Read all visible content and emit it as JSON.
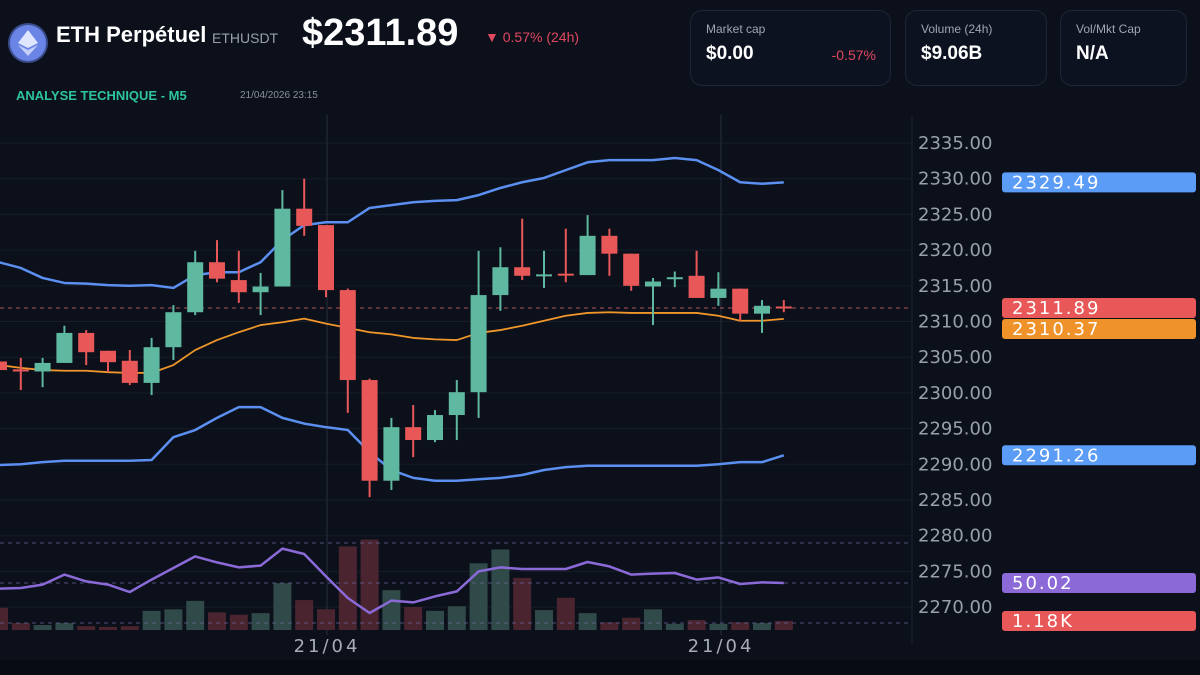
{
  "header": {
    "title": "ETH Perpétuel",
    "ticker": "ETHUSDT",
    "price": "$2311.89",
    "change": "▼ 0.57% (24h)",
    "icon": "ethereum-logo-icon"
  },
  "analysis": {
    "label": "ANALYSE TECHNIQUE - M5",
    "timestamp": "21/04/2026 23:15"
  },
  "stats": [
    {
      "label": "Market cap",
      "value": "$0.00",
      "change": "-0.57%"
    },
    {
      "label": "Volume (24h)",
      "value": "$9.06B"
    },
    {
      "label": "Vol/Mkt Cap",
      "value": "N/A"
    }
  ],
  "colors": {
    "up": "#5fb8a0",
    "down": "#e85858",
    "band": "#5b8ff0",
    "ma": "#f0962a",
    "rsi": "#8b6ad8",
    "bg": "#0b101b"
  },
  "chart_data": {
    "type": "candlestick",
    "x_labels": [
      "21/04",
      "21/04"
    ],
    "y_ticks": [
      2335,
      2330,
      2325,
      2320,
      2315,
      2310,
      2305,
      2300,
      2295,
      2290,
      2285,
      2280,
      2275,
      2270
    ],
    "y_tick_labels": [
      "2335.00",
      "2330.00",
      "2325.00",
      "2320.00",
      "2315.00",
      "2310.00",
      "2305.00",
      "2300.00",
      "2295.00",
      "2290.00",
      "2285.00",
      "2280.00",
      "2275.00",
      "2270.00"
    ],
    "ylim": [
      2268,
      2338
    ],
    "grid": true,
    "candles": [
      [
        2304.4,
        2304.9,
        2303.0,
        2303.2
      ],
      [
        2303.3,
        2304.9,
        2300.4,
        2303.0
      ],
      [
        2303.0,
        2304.9,
        2300.8,
        2304.2
      ],
      [
        2304.2,
        2309.4,
        2304.2,
        2308.4
      ],
      [
        2308.4,
        2308.8,
        2303.9,
        2305.7
      ],
      [
        2305.9,
        2305.9,
        2302.9,
        2304.3
      ],
      [
        2304.5,
        2306.0,
        2301.1,
        2301.4
      ],
      [
        2301.4,
        2307.7,
        2299.7,
        2306.4
      ],
      [
        2306.4,
        2312.3,
        2304.6,
        2311.3
      ],
      [
        2311.3,
        2319.9,
        2310.9,
        2318.3
      ],
      [
        2318.3,
        2321.4,
        2315.5,
        2316.0
      ],
      [
        2315.8,
        2319.9,
        2312.6,
        2314.1
      ],
      [
        2314.1,
        2316.8,
        2310.9,
        2314.9
      ],
      [
        2314.9,
        2328.4,
        2314.9,
        2325.8
      ],
      [
        2325.8,
        2330.0,
        2322.0,
        2323.4
      ],
      [
        2323.5,
        2323.5,
        2313.4,
        2314.4
      ],
      [
        2314.4,
        2314.6,
        2297.2,
        2301.8
      ],
      [
        2301.8,
        2302.0,
        2285.4,
        2287.7
      ],
      [
        2287.7,
        2296.5,
        2286.4,
        2295.2
      ],
      [
        2295.2,
        2298.3,
        2291.0,
        2293.4
      ],
      [
        2293.4,
        2297.6,
        2293.1,
        2296.9
      ],
      [
        2296.9,
        2301.8,
        2293.4,
        2300.1
      ],
      [
        2300.1,
        2319.9,
        2296.5,
        2313.7
      ],
      [
        2313.7,
        2320.4,
        2311.5,
        2317.6
      ],
      [
        2317.6,
        2324.4,
        2315.8,
        2316.4
      ],
      [
        2316.4,
        2319.9,
        2314.7,
        2316.6
      ],
      [
        2316.7,
        2323.0,
        2315.5,
        2316.5
      ],
      [
        2316.5,
        2324.9,
        2316.5,
        2322.0
      ],
      [
        2322.0,
        2323.0,
        2316.4,
        2319.5
      ],
      [
        2319.5,
        2319.5,
        2314.3,
        2315.0
      ],
      [
        2314.9,
        2316.1,
        2309.5,
        2315.6
      ],
      [
        2316.0,
        2317.0,
        2314.8,
        2316.2
      ],
      [
        2316.4,
        2319.9,
        2313.3,
        2313.3
      ],
      [
        2313.3,
        2316.9,
        2312.2,
        2314.6
      ],
      [
        2314.6,
        2314.6,
        2310.1,
        2311.1
      ],
      [
        2311.1,
        2313.0,
        2308.4,
        2312.2
      ],
      [
        2312.1,
        2313.0,
        2311.3,
        2311.89
      ]
    ],
    "bollinger_upper": [
      2318.3,
      2317.5,
      2316.1,
      2315.4,
      2315.3,
      2315.1,
      2315.0,
      2315.1,
      2314.7,
      2316.5,
      2316.9,
      2316.9,
      2318.3,
      2321.4,
      2323.5,
      2323.9,
      2323.9,
      2325.9,
      2326.3,
      2326.7,
      2326.9,
      2327.0,
      2327.7,
      2328.7,
      2329.5,
      2330.1,
      2331.2,
      2332.3,
      2332.6,
      2332.6,
      2332.6,
      2332.9,
      2332.6,
      2331.2,
      2329.5,
      2329.3,
      2329.49
    ],
    "moving_average": [
      2303.9,
      2303.5,
      2303.2,
      2303.1,
      2303.1,
      2302.9,
      2302.8,
      2302.8,
      2303.9,
      2306.0,
      2307.4,
      2308.5,
      2309.5,
      2309.9,
      2310.4,
      2309.7,
      2309.1,
      2308.5,
      2308.2,
      2307.7,
      2307.5,
      2307.4,
      2308.4,
      2308.8,
      2309.4,
      2310.1,
      2310.8,
      2311.2,
      2311.3,
      2311.2,
      2311.2,
      2311.2,
      2311.2,
      2310.8,
      2310.1,
      2310.1,
      2310.37
    ],
    "bollinger_lower": [
      2289.9,
      2290.0,
      2290.3,
      2290.5,
      2290.5,
      2290.5,
      2290.5,
      2290.6,
      2293.8,
      2294.8,
      2296.5,
      2298.0,
      2298.0,
      2296.5,
      2295.7,
      2295.2,
      2294.8,
      2291.7,
      2289.2,
      2288.1,
      2287.7,
      2287.7,
      2287.9,
      2288.1,
      2288.5,
      2289.2,
      2289.6,
      2289.8,
      2289.8,
      2289.8,
      2289.8,
      2289.8,
      2289.8,
      2290.0,
      2290.3,
      2290.3,
      2291.26
    ],
    "volume_k": [
      2.9,
      0.9,
      0.65,
      0.9,
      0.5,
      0.4,
      0.5,
      2.5,
      2.7,
      3.8,
      2.3,
      2.0,
      2.2,
      6.1,
      3.9,
      2.7,
      10.9,
      11.8,
      5.2,
      3.0,
      2.5,
      3.1,
      8.7,
      10.5,
      6.8,
      2.6,
      4.2,
      2.2,
      1.0,
      1.6,
      2.7,
      0.8,
      1.3,
      0.8,
      1.0,
      0.9,
      1.18
    ],
    "rsi": [
      47.2,
      47.5,
      49.2,
      54.2,
      50.8,
      49.2,
      45.5,
      51.7,
      57.5,
      63.3,
      60.3,
      57.8,
      58.7,
      67.2,
      64.5,
      53.3,
      42.5,
      35.0,
      41.2,
      40.3,
      43.3,
      45.8,
      55.8,
      57.8,
      57.0,
      57.0,
      57.0,
      60.5,
      58.3,
      54.2,
      54.7,
      55.0,
      51.7,
      52.8,
      49.5,
      50.3,
      50.02
    ],
    "tags": [
      {
        "value": 2329.49,
        "text": "2329.49",
        "color": "#5b9cf6"
      },
      {
        "value": 2311.89,
        "text": "2311.89",
        "color": "#e85858"
      },
      {
        "value": 2310.37,
        "text": "2310.37",
        "color": "#f0922a"
      },
      {
        "value": 2291.26,
        "text": "2291.26",
        "color": "#5b9cf6"
      }
    ],
    "rsi_tag": {
      "text": "50.02",
      "color": "#8b6ad8"
    },
    "volume_tag": {
      "text": "1.18K",
      "color": "#e85858"
    }
  }
}
